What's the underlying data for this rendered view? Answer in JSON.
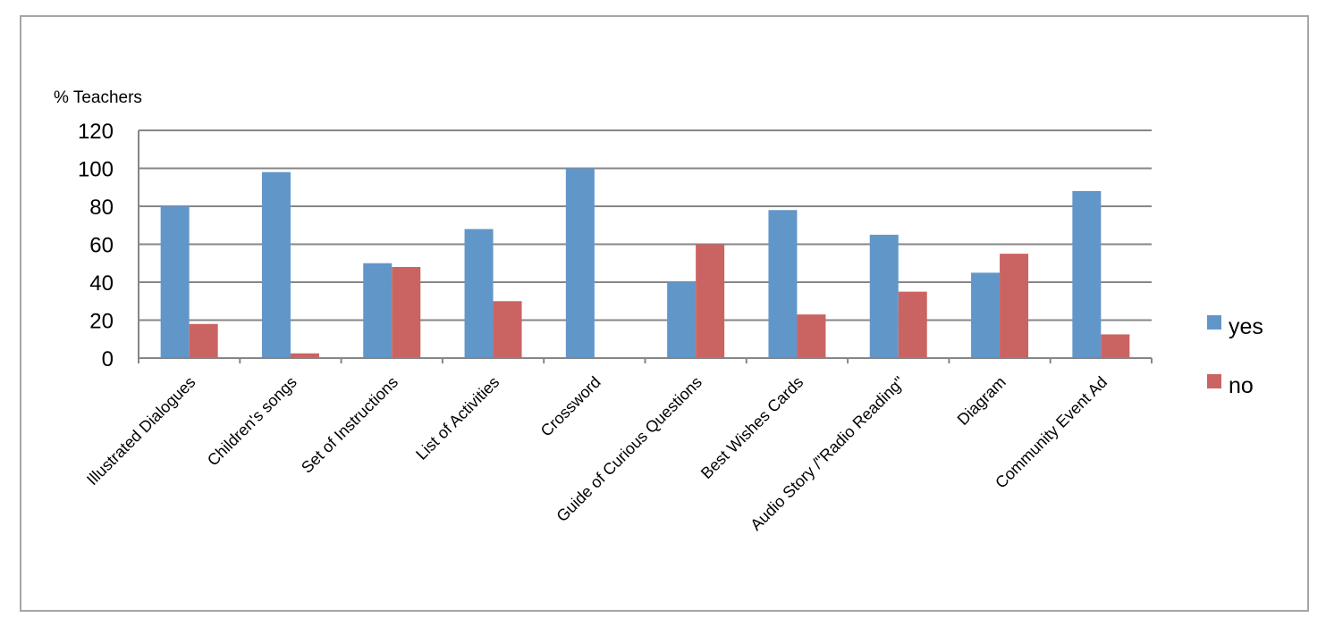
{
  "chart_data": {
    "type": "bar",
    "title": "",
    "xlabel": "",
    "ylabel": "% Teachers",
    "ylim": [
      0,
      120
    ],
    "yticks": [
      0,
      20,
      40,
      60,
      80,
      100,
      120
    ],
    "grid": true,
    "legend_position": "right",
    "categories": [
      "Illustrated Dialogues",
      "Children's songs",
      "Set of Instructions",
      "List of Activities",
      "Crossword",
      "Guide of Curious Questions",
      "Best Wishes Cards",
      "Audio Story /\"Radio Reading\"",
      "Diagram",
      "Community Event Ad"
    ],
    "series": [
      {
        "name": "yes",
        "color": "#6196c9",
        "values": [
          80,
          98,
          50,
          68,
          100,
          40,
          78,
          65,
          45,
          88
        ]
      },
      {
        "name": "no",
        "color": "#ca6463",
        "values": [
          18,
          2.5,
          48,
          30,
          0,
          60,
          23,
          35,
          55,
          12.5
        ]
      }
    ]
  }
}
